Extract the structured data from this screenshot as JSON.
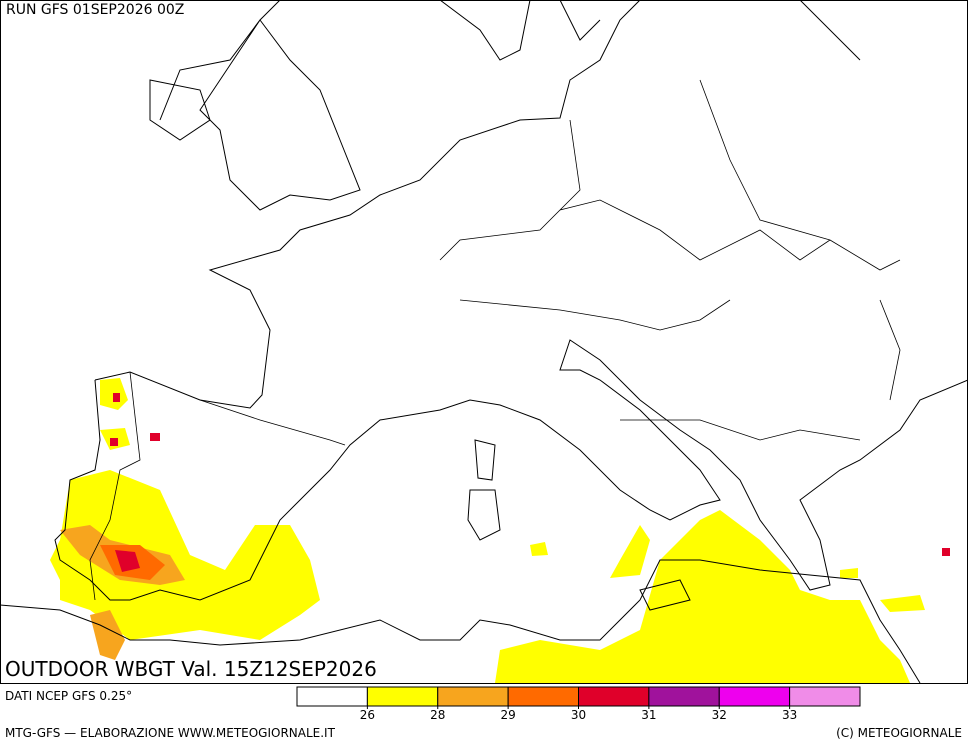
{
  "header": {
    "run": "RUN GFS 01SEP2026 00Z",
    "title": "OUTDOOR WBGT Val. 15Z12SEP2026",
    "source": "DATI NCEP GFS 0.25°"
  },
  "legend": {
    "colors": [
      "#ffffff",
      "#ffff00",
      "#f7a51e",
      "#ff6a00",
      "#e0002a",
      "#a0129c",
      "#ee00ee",
      "#f08ce8"
    ],
    "ticks": [
      26,
      28,
      29,
      30,
      31,
      32,
      33
    ]
  },
  "footer": {
    "left": "MTG-GFS — ELABORAZIONE WWW.METEOGIORNALE.IT",
    "right": "(C) METEOGIORNALE"
  }
}
